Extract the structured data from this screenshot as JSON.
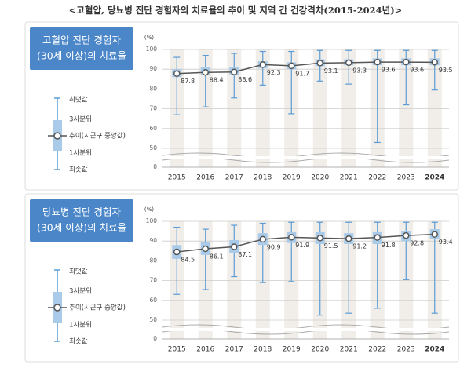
{
  "title": "<고혈압, 당뇨병 진단 경험자의 치료율의 추이 및 지역 간 건강격차(2015-2024년)>",
  "chart_data": [
    {
      "type": "box",
      "title_lines": [
        "고혈압 진단 경험자",
        "(30세 이상)의 치료율"
      ],
      "y_unit": "(%)",
      "legend_labels": [
        "최댓값",
        "3사분위",
        "추이(시군구 중앙값)",
        "1사분위",
        "최솟값"
      ],
      "categories": [
        "2015",
        "2016",
        "2017",
        "2018",
        "2019",
        "2020",
        "2021",
        "2022",
        "2023",
        "2024"
      ],
      "max": [
        96,
        97,
        98,
        99,
        99,
        99.5,
        99.5,
        99.5,
        99.5,
        99.5
      ],
      "q3": [
        90,
        91,
        91,
        94,
        93.5,
        95,
        95,
        95.5,
        95.5,
        95.5
      ],
      "median": [
        87.8,
        88.4,
        88.6,
        92.3,
        91.7,
        93.1,
        93.3,
        93.6,
        93.6,
        93.5
      ],
      "q1": [
        86,
        87,
        87,
        90.5,
        90,
        91.5,
        92,
        92,
        92,
        92
      ],
      "min": [
        67,
        71,
        75.5,
        82,
        67.5,
        84,
        82.5,
        53,
        72,
        79.5
      ],
      "ylim": [
        50,
        100
      ],
      "yticks": [
        0,
        50,
        60,
        70,
        80,
        90,
        100
      ],
      "axis_break": true,
      "grid": true,
      "box_color": "#a9cbe9",
      "whisker_color": "#5b9bd5",
      "line_color": "#555555"
    },
    {
      "type": "box",
      "title_lines": [
        "당뇨병 진단 경험자",
        "(30세 이상)의 치료율"
      ],
      "y_unit": "(%)",
      "legend_labels": [
        "최댓값",
        "3사분위",
        "추이(시군구 중앙값)",
        "1사분위",
        "최솟값"
      ],
      "categories": [
        "2015",
        "2016",
        "2017",
        "2018",
        "2019",
        "2020",
        "2021",
        "2022",
        "2023",
        "2024"
      ],
      "max": [
        97,
        96,
        98,
        99,
        99.5,
        99.5,
        99.5,
        99.5,
        99.5,
        99.5
      ],
      "q3": [
        88,
        89.5,
        90.5,
        94,
        94.5,
        94.5,
        94,
        94.5,
        95,
        96
      ],
      "median": [
        84.5,
        86.1,
        87.1,
        90.9,
        91.9,
        91.5,
        91.2,
        91.8,
        92.8,
        93.4
      ],
      "q1": [
        81,
        83,
        84,
        88,
        89,
        88.5,
        88.5,
        88.5,
        90,
        91
      ],
      "min": [
        63,
        65.5,
        72,
        69,
        69.5,
        52.5,
        53.5,
        56,
        70.5,
        53.5
      ],
      "ylim": [
        50,
        100
      ],
      "yticks": [
        0,
        50,
        60,
        70,
        80,
        90,
        100
      ],
      "axis_break": true,
      "grid": true,
      "box_color": "#a9cbe9",
      "whisker_color": "#5b9bd5",
      "line_color": "#555555"
    }
  ]
}
